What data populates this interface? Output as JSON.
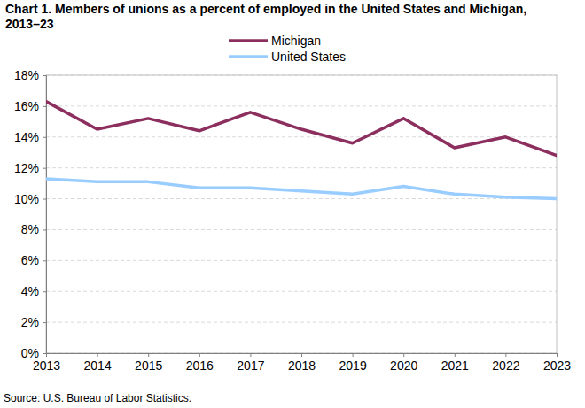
{
  "chart_data": {
    "type": "line",
    "title": "Chart 1. Members of unions as a percent of employed in the United States and Michigan, 2013–23",
    "source": "Source: U.S. Bureau of Labor Statistics.",
    "x": [
      2013,
      2014,
      2015,
      2016,
      2017,
      2018,
      2019,
      2020,
      2021,
      2022,
      2023
    ],
    "series": [
      {
        "name": "Michigan",
        "color": "#8c2f5e",
        "values": [
          16.3,
          14.5,
          15.2,
          14.4,
          15.6,
          14.5,
          13.6,
          15.2,
          13.3,
          14.0,
          12.8
        ]
      },
      {
        "name": "United States",
        "color": "#99ccff",
        "values": [
          11.3,
          11.1,
          11.1,
          10.7,
          10.7,
          10.5,
          10.3,
          10.8,
          10.3,
          10.1,
          10.0
        ]
      }
    ],
    "xlim": [
      2013,
      2023
    ],
    "xticks": [
      2013,
      2014,
      2015,
      2016,
      2017,
      2018,
      2019,
      2020,
      2021,
      2022,
      2023
    ],
    "ylim": [
      0,
      18
    ],
    "yticks": [
      {
        "value": 0,
        "label": "0%"
      },
      {
        "value": 2,
        "label": "2%"
      },
      {
        "value": 4,
        "label": "4%"
      },
      {
        "value": 6,
        "label": "6%"
      },
      {
        "value": 8,
        "label": "8%"
      },
      {
        "value": 10,
        "label": "10%"
      },
      {
        "value": 12,
        "label": "12%"
      },
      {
        "value": 14,
        "label": "14%"
      },
      {
        "value": 16,
        "label": "16%"
      },
      {
        "value": 18,
        "label": "18%"
      }
    ],
    "grid": true,
    "legend": "top"
  }
}
